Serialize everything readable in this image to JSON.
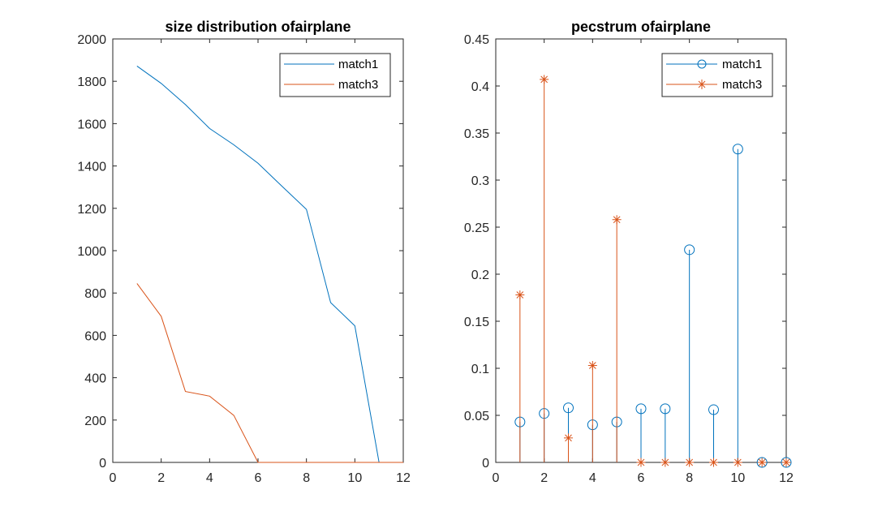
{
  "colors": {
    "series1": "#0072BD",
    "series2": "#D95319",
    "axis": "#262626",
    "background": "#ffffff"
  },
  "chart_data": [
    {
      "type": "line",
      "title": "size distribution ofairplane",
      "xlabel": "",
      "ylabel": "",
      "xlim": [
        0,
        12
      ],
      "ylim": [
        0,
        2000
      ],
      "grid": false,
      "legend_position": "top-right",
      "xticks": [
        0,
        2,
        4,
        6,
        8,
        10,
        12
      ],
      "yticks": [
        0,
        200,
        400,
        600,
        800,
        1000,
        1200,
        1400,
        1600,
        1800,
        2000
      ],
      "x": [
        1,
        2,
        3,
        4,
        5,
        6,
        7,
        8,
        9,
        10,
        11,
        12
      ],
      "series": [
        {
          "name": "match1",
          "values": [
            1872,
            1790,
            1690,
            1577,
            1500,
            1413,
            1303,
            1195,
            755,
            645,
            0,
            0
          ]
        },
        {
          "name": "match3",
          "values": [
            845,
            690,
            335,
            313,
            222,
            0,
            0,
            0,
            0,
            0,
            0,
            0
          ]
        }
      ]
    },
    {
      "type": "stem",
      "title": "pecstrum ofairplane",
      "xlabel": "",
      "ylabel": "",
      "xlim": [
        0,
        12
      ],
      "ylim": [
        0,
        0.45
      ],
      "grid": false,
      "legend_position": "top-right",
      "xticks": [
        0,
        2,
        4,
        6,
        8,
        10,
        12
      ],
      "yticks": [
        0,
        0.05,
        0.1,
        0.15,
        0.2,
        0.25,
        0.3,
        0.35,
        0.4,
        0.45
      ],
      "x": [
        1,
        2,
        3,
        4,
        5,
        6,
        7,
        8,
        9,
        10,
        11,
        12
      ],
      "series": [
        {
          "name": "match1",
          "marker": "circle",
          "values": [
            0.043,
            0.052,
            0.058,
            0.04,
            0.043,
            0.057,
            0.057,
            0.226,
            0.056,
            0.333,
            0,
            0
          ]
        },
        {
          "name": "match3",
          "marker": "asterisk",
          "values": [
            0.178,
            0.407,
            0.026,
            0.103,
            0.258,
            0,
            0,
            0,
            0,
            0,
            0,
            0
          ]
        }
      ]
    }
  ]
}
